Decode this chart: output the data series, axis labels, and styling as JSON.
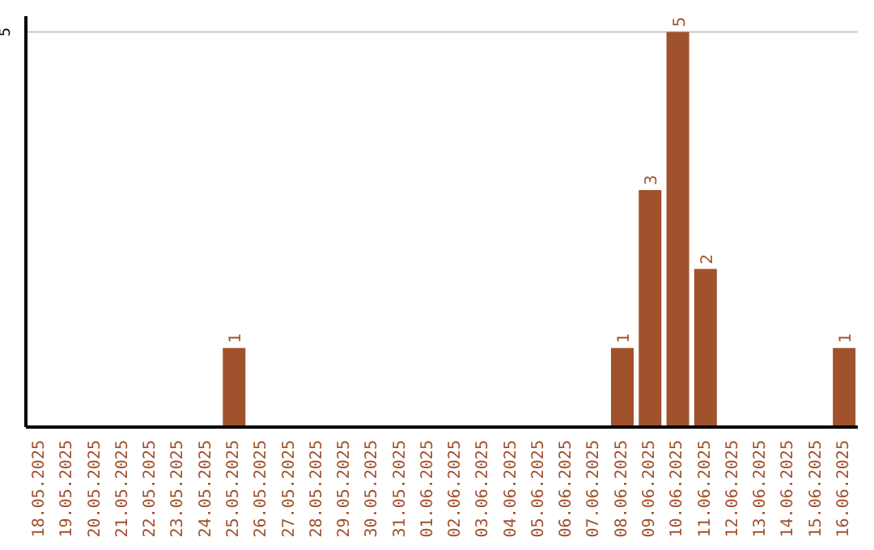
{
  "chart_data": {
    "type": "bar",
    "categories": [
      "18.05.2025",
      "19.05.2025",
      "20.05.2025",
      "21.05.2025",
      "22.05.2025",
      "23.05.2025",
      "24.05.2025",
      "25.05.2025",
      "26.05.2025",
      "27.05.2025",
      "28.05.2025",
      "29.05.2025",
      "30.05.2025",
      "31.05.2025",
      "01.06.2025",
      "02.06.2025",
      "03.06.2025",
      "04.06.2025",
      "05.06.2025",
      "06.06.2025",
      "07.06.2025",
      "08.06.2025",
      "09.06.2025",
      "10.06.2025",
      "11.06.2025",
      "12.06.2025",
      "13.06.2025",
      "14.06.2025",
      "15.06.2025",
      "16.06.2025"
    ],
    "values": [
      0,
      0,
      0,
      0,
      0,
      0,
      0,
      1,
      0,
      0,
      0,
      0,
      0,
      0,
      0,
      0,
      0,
      0,
      0,
      0,
      0,
      1,
      3,
      5,
      2,
      0,
      0,
      0,
      0,
      1
    ],
    "value_labels": [
      null,
      null,
      null,
      null,
      null,
      null,
      null,
      "1",
      null,
      null,
      null,
      null,
      null,
      null,
      null,
      null,
      null,
      null,
      null,
      null,
      null,
      "1",
      "3",
      "5",
      "2",
      null,
      null,
      null,
      null,
      "1"
    ],
    "color": "#a0522d",
    "ylim": [
      0,
      5.2
    ],
    "yticks": [
      5
    ],
    "grid": "y"
  }
}
